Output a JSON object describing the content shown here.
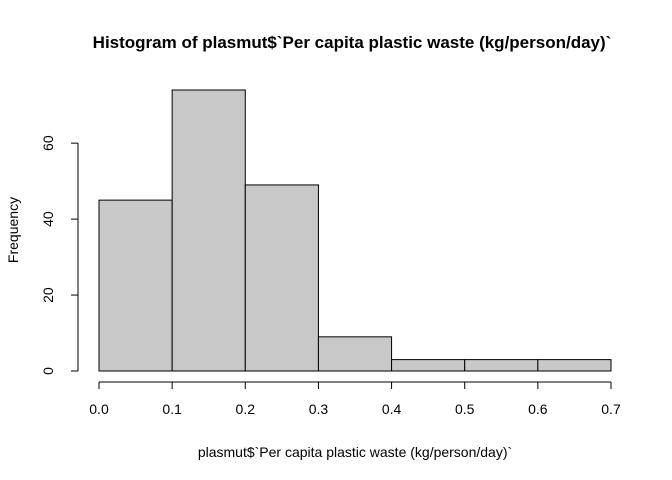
{
  "chart_data": {
    "type": "bar",
    "title": "Histogram of plasmut$`Per capita plastic waste (kg/person/day)`",
    "xlabel": "plasmut$`Per capita plastic waste (kg/person/day)`",
    "ylabel": "Frequency",
    "bins": [
      {
        "from": 0.0,
        "to": 0.1,
        "count": 45
      },
      {
        "from": 0.1,
        "to": 0.2,
        "count": 74
      },
      {
        "from": 0.2,
        "to": 0.3,
        "count": 49
      },
      {
        "from": 0.3,
        "to": 0.4,
        "count": 9
      },
      {
        "from": 0.4,
        "to": 0.5,
        "count": 3
      },
      {
        "from": 0.5,
        "to": 0.6,
        "count": 3
      },
      {
        "from": 0.6,
        "to": 0.7,
        "count": 3
      }
    ],
    "xlim": [
      0,
      0.7
    ],
    "ylim": [
      0,
      74
    ],
    "x_ticks": [
      "0.0",
      "0.1",
      "0.2",
      "0.3",
      "0.4",
      "0.5",
      "0.6",
      "0.7"
    ],
    "y_ticks": [
      "0",
      "20",
      "40",
      "60"
    ],
    "bar_color": "#c8c8c8",
    "grid": false
  }
}
